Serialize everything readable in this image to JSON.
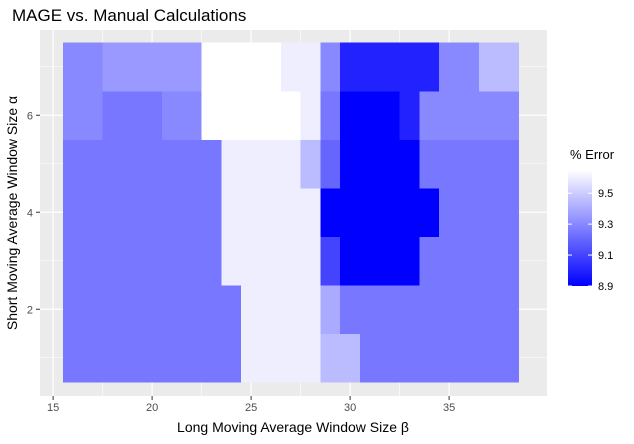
{
  "chart_data": {
    "type": "heatmap",
    "title": "MAGE vs. Manual Calculations",
    "xlabel": "Long Moving Average Window Size β",
    "ylabel": "Short Moving Average Window Size α",
    "xlim": [
      15.5,
      38.5
    ],
    "ylim": [
      0.5,
      7.5
    ],
    "x_ticks": [
      15,
      20,
      25,
      30,
      35
    ],
    "y_ticks": [
      2,
      4,
      6
    ],
    "x": [
      16,
      17,
      18,
      19,
      20,
      21,
      22,
      23,
      24,
      25,
      26,
      27,
      28,
      29,
      30,
      31,
      32,
      33,
      34,
      35,
      36,
      37,
      38
    ],
    "y": [
      1,
      2,
      3,
      4,
      5,
      6,
      7
    ],
    "z": [
      [
        9.25,
        9.25,
        9.25,
        9.25,
        9.25,
        9.25,
        9.25,
        9.25,
        9.25,
        9.6,
        9.6,
        9.6,
        9.6,
        9.45,
        9.45,
        9.25,
        9.25,
        9.25,
        9.25,
        9.25,
        9.25,
        9.25,
        9.25
      ],
      [
        9.25,
        9.25,
        9.25,
        9.25,
        9.25,
        9.25,
        9.25,
        9.25,
        9.25,
        9.6,
        9.6,
        9.6,
        9.6,
        9.4,
        9.25,
        9.25,
        9.25,
        9.25,
        9.25,
        9.25,
        9.25,
        9.25,
        9.25
      ],
      [
        9.25,
        9.25,
        9.25,
        9.25,
        9.25,
        9.25,
        9.25,
        9.25,
        9.6,
        9.6,
        9.6,
        9.6,
        9.6,
        9.1,
        8.9,
        8.9,
        8.9,
        8.9,
        9.25,
        9.25,
        9.25,
        9.25,
        9.25
      ],
      [
        9.25,
        9.25,
        9.25,
        9.25,
        9.25,
        9.25,
        9.25,
        9.25,
        9.6,
        9.6,
        9.6,
        9.6,
        9.6,
        8.9,
        8.9,
        8.9,
        8.9,
        8.9,
        8.9,
        9.25,
        9.25,
        9.25,
        9.25
      ],
      [
        9.25,
        9.25,
        9.25,
        9.25,
        9.25,
        9.25,
        9.25,
        9.25,
        9.6,
        9.6,
        9.6,
        9.6,
        9.45,
        9.2,
        8.9,
        8.9,
        8.9,
        8.9,
        9.25,
        9.25,
        9.25,
        9.25,
        9.25
      ],
      [
        9.3,
        9.3,
        9.25,
        9.25,
        9.25,
        9.3,
        9.3,
        9.65,
        9.65,
        9.65,
        9.65,
        9.65,
        9.6,
        9.25,
        8.9,
        8.9,
        8.9,
        9.0,
        9.3,
        9.3,
        9.3,
        9.3,
        9.3
      ],
      [
        9.3,
        9.3,
        9.35,
        9.35,
        9.35,
        9.35,
        9.35,
        9.65,
        9.65,
        9.65,
        9.65,
        9.6,
        9.6,
        9.3,
        9.0,
        9.0,
        9.0,
        9.0,
        9.0,
        9.3,
        9.3,
        9.45,
        9.45
      ]
    ],
    "legend": {
      "title": "% Error",
      "labels": [
        "9.5",
        "9.3",
        "9.1",
        "8.9"
      ],
      "values": [
        9.5,
        9.3,
        9.1,
        8.9
      ],
      "range": [
        8.9,
        9.65
      ]
    },
    "colors": {
      "low": "#0000ff",
      "high": "#ffffff",
      "panel": "#ebebeb",
      "grid": "#ffffff"
    },
    "grid": true,
    "legend_position": "right"
  }
}
